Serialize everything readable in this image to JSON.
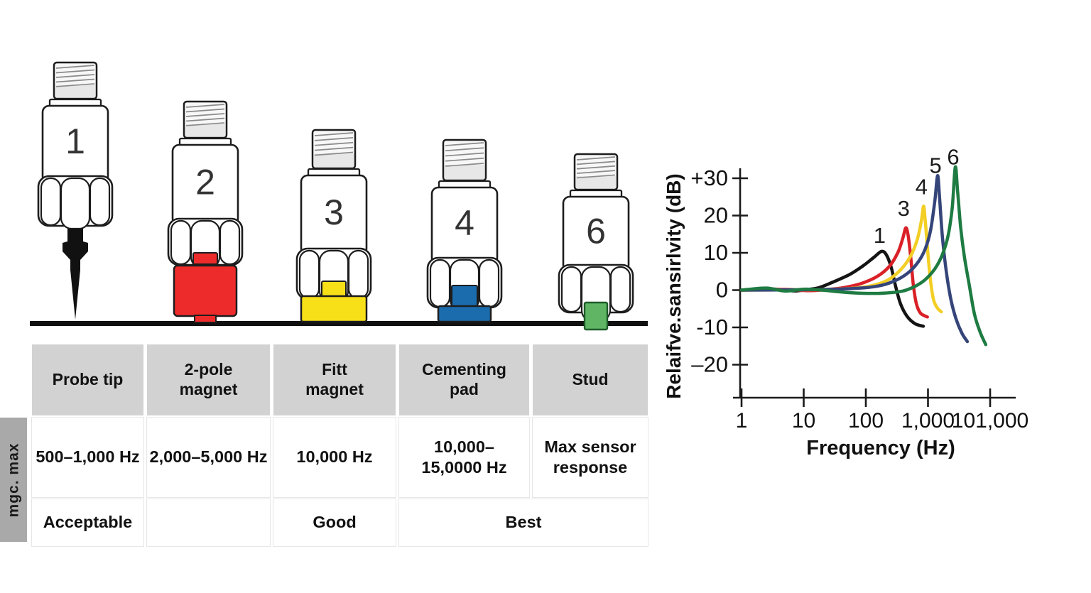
{
  "side_label": "mgc. max",
  "sensors": [
    {
      "number": "1",
      "mount": "probe-tip",
      "accent": "#111111"
    },
    {
      "number": "2",
      "mount": "2-pole-magnet",
      "accent": "#ee2b2b"
    },
    {
      "number": "3",
      "mount": "flat-magnet",
      "accent": "#f7e018"
    },
    {
      "number": "4",
      "mount": "cementing-pad",
      "accent": "#1b6cad"
    },
    {
      "number": "6",
      "mount": "stud",
      "accent": "#60b565"
    }
  ],
  "table": {
    "columns": [
      {
        "header": "Probe tip",
        "freq": "500–1,000 Hz"
      },
      {
        "header": "2-pole\nmagnet",
        "freq": "2,000–5,000 Hz"
      },
      {
        "header": "Fitt\nmagnet",
        "freq": "10,000 Hz"
      },
      {
        "header": "Cementing\npad",
        "freq": "10,000–\n15,0000 Hz"
      },
      {
        "header": "Stud",
        "freq": "Max sensor\nresponse"
      }
    ],
    "ratings": [
      "Acceptable",
      "",
      "Good",
      "Best"
    ]
  },
  "chart_data": {
    "type": "line",
    "xlabel": "Frequency (Hz)",
    "ylabel": "Relaifve.sansirlvity (dB)",
    "x_scale": "log",
    "x_ticks": [
      "1",
      "10",
      "100",
      "1,000",
      "101,000"
    ],
    "y_ticks": [
      "+30",
      "20",
      "10",
      "0",
      "-10",
      "–20"
    ],
    "y_tick_values": [
      30,
      20,
      10,
      0,
      -10,
      -20
    ],
    "ylim": [
      -29,
      35
    ],
    "grid": false,
    "legend": "labels above peaks",
    "series": [
      {
        "name": "1",
        "color": "#141414",
        "peak_hz": 180,
        "peak_db": 10.4,
        "label_dy": -12,
        "points": [
          [
            1,
            0
          ],
          [
            3,
            0.3
          ],
          [
            7,
            -0.2
          ],
          [
            12,
            0.2
          ],
          [
            18,
            0.7
          ],
          [
            30,
            2.2
          ],
          [
            55,
            4.2
          ],
          [
            90,
            6.5
          ],
          [
            135,
            8.8
          ],
          [
            180,
            10.4
          ],
          [
            215,
            9.4
          ],
          [
            255,
            6.2
          ],
          [
            300,
            1.2
          ],
          [
            360,
            -3.6
          ],
          [
            460,
            -7
          ],
          [
            620,
            -9
          ],
          [
            840,
            -9.7
          ]
        ]
      },
      {
        "name": "3",
        "color": "#da2128",
        "peak_hz": 440,
        "peak_db": 16.7,
        "label_dy": -17,
        "points": [
          [
            1,
            0
          ],
          [
            5,
            0.2
          ],
          [
            12,
            -0.15
          ],
          [
            25,
            0.2
          ],
          [
            45,
            0.7
          ],
          [
            85,
            1.8
          ],
          [
            150,
            3.6
          ],
          [
            240,
            6.4
          ],
          [
            330,
            10.2
          ],
          [
            395,
            14
          ],
          [
            440,
            16.7
          ],
          [
            480,
            14.6
          ],
          [
            530,
            8.5
          ],
          [
            580,
            1.5
          ],
          [
            650,
            -3.6
          ],
          [
            760,
            -6.2
          ],
          [
            980,
            -7.2
          ]
        ]
      },
      {
        "name": "4",
        "color": "#f3cf25",
        "peak_hz": 850,
        "peak_db": 22.5,
        "label_dy": -17,
        "points": [
          [
            1,
            0
          ],
          [
            10,
            0.1
          ],
          [
            40,
            0.3
          ],
          [
            110,
            1
          ],
          [
            220,
            2.6
          ],
          [
            360,
            5.4
          ],
          [
            520,
            9
          ],
          [
            670,
            13.5
          ],
          [
            780,
            18.5
          ],
          [
            850,
            22.5
          ],
          [
            905,
            18.5
          ],
          [
            990,
            10.5
          ],
          [
            1090,
            3
          ],
          [
            1230,
            -2.6
          ],
          [
            1430,
            -4.9
          ],
          [
            1640,
            -5.8
          ]
        ]
      },
      {
        "name": "5",
        "color": "#35457a",
        "peak_hz": 1430,
        "peak_db": 30.7,
        "label_dy": -4,
        "points": [
          [
            1,
            0
          ],
          [
            20,
            0.15
          ],
          [
            90,
            0.6
          ],
          [
            180,
            1.3
          ],
          [
            320,
            2.8
          ],
          [
            500,
            4.9
          ],
          [
            700,
            7.6
          ],
          [
            900,
            11
          ],
          [
            1100,
            16
          ],
          [
            1290,
            24
          ],
          [
            1430,
            30.7
          ],
          [
            1540,
            24.5
          ],
          [
            1700,
            14.5
          ],
          [
            1950,
            5.5
          ],
          [
            2300,
            -2
          ],
          [
            2800,
            -7.5
          ],
          [
            3500,
            -11.5
          ],
          [
            4300,
            -13.8
          ]
        ]
      },
      {
        "name": "6",
        "color": "#1e7b42",
        "peak_hz": 2750,
        "peak_db": 33,
        "label_dy": -4,
        "points": [
          [
            1,
            0
          ],
          [
            2.5,
            0.55
          ],
          [
            5,
            -0.25
          ],
          [
            10,
            0.25
          ],
          [
            20,
            0
          ],
          [
            40,
            -0.5
          ],
          [
            90,
            -0.85
          ],
          [
            200,
            -0.8
          ],
          [
            380,
            -0.3
          ],
          [
            600,
            0.9
          ],
          [
            900,
            2.8
          ],
          [
            1300,
            5.8
          ],
          [
            1700,
            9.5
          ],
          [
            2100,
            14.5
          ],
          [
            2450,
            22
          ],
          [
            2750,
            33
          ],
          [
            3000,
            26.5
          ],
          [
            3350,
            17
          ],
          [
            3850,
            9
          ],
          [
            4600,
            1.5
          ],
          [
            5600,
            -6.5
          ],
          [
            7000,
            -11.5
          ],
          [
            8500,
            -14.6
          ]
        ]
      }
    ]
  }
}
